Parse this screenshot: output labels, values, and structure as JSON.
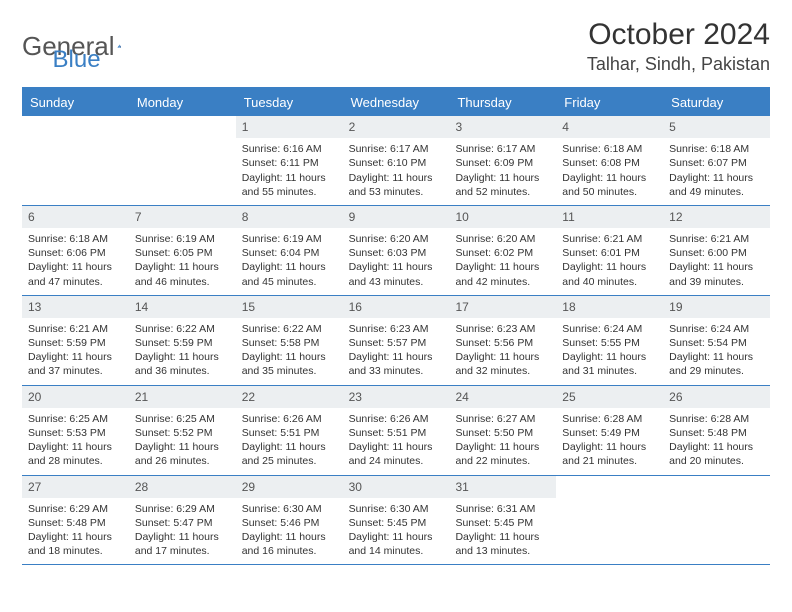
{
  "logo": {
    "part1": "General",
    "part2": "Blue"
  },
  "title": "October 2024",
  "location": "Talhar, Sindh, Pakistan",
  "colors": {
    "brand": "#3a7fc4",
    "header_bg": "#3a7fc4",
    "header_text": "#ffffff",
    "daynum_bg": "#eceff1",
    "text": "#333333",
    "page_bg": "#ffffff"
  },
  "fonts": {
    "title_size": 30,
    "location_size": 18,
    "dayheader_size": 13,
    "daynum_size": 12,
    "cell_size": 10.5
  },
  "day_names": [
    "Sunday",
    "Monday",
    "Tuesday",
    "Wednesday",
    "Thursday",
    "Friday",
    "Saturday"
  ],
  "weeks": [
    [
      null,
      null,
      {
        "n": "1",
        "sr": "6:16 AM",
        "ss": "6:11 PM",
        "dl": "11 hours and 55 minutes."
      },
      {
        "n": "2",
        "sr": "6:17 AM",
        "ss": "6:10 PM",
        "dl": "11 hours and 53 minutes."
      },
      {
        "n": "3",
        "sr": "6:17 AM",
        "ss": "6:09 PM",
        "dl": "11 hours and 52 minutes."
      },
      {
        "n": "4",
        "sr": "6:18 AM",
        "ss": "6:08 PM",
        "dl": "11 hours and 50 minutes."
      },
      {
        "n": "5",
        "sr": "6:18 AM",
        "ss": "6:07 PM",
        "dl": "11 hours and 49 minutes."
      }
    ],
    [
      {
        "n": "6",
        "sr": "6:18 AM",
        "ss": "6:06 PM",
        "dl": "11 hours and 47 minutes."
      },
      {
        "n": "7",
        "sr": "6:19 AM",
        "ss": "6:05 PM",
        "dl": "11 hours and 46 minutes."
      },
      {
        "n": "8",
        "sr": "6:19 AM",
        "ss": "6:04 PM",
        "dl": "11 hours and 45 minutes."
      },
      {
        "n": "9",
        "sr": "6:20 AM",
        "ss": "6:03 PM",
        "dl": "11 hours and 43 minutes."
      },
      {
        "n": "10",
        "sr": "6:20 AM",
        "ss": "6:02 PM",
        "dl": "11 hours and 42 minutes."
      },
      {
        "n": "11",
        "sr": "6:21 AM",
        "ss": "6:01 PM",
        "dl": "11 hours and 40 minutes."
      },
      {
        "n": "12",
        "sr": "6:21 AM",
        "ss": "6:00 PM",
        "dl": "11 hours and 39 minutes."
      }
    ],
    [
      {
        "n": "13",
        "sr": "6:21 AM",
        "ss": "5:59 PM",
        "dl": "11 hours and 37 minutes."
      },
      {
        "n": "14",
        "sr": "6:22 AM",
        "ss": "5:59 PM",
        "dl": "11 hours and 36 minutes."
      },
      {
        "n": "15",
        "sr": "6:22 AM",
        "ss": "5:58 PM",
        "dl": "11 hours and 35 minutes."
      },
      {
        "n": "16",
        "sr": "6:23 AM",
        "ss": "5:57 PM",
        "dl": "11 hours and 33 minutes."
      },
      {
        "n": "17",
        "sr": "6:23 AM",
        "ss": "5:56 PM",
        "dl": "11 hours and 32 minutes."
      },
      {
        "n": "18",
        "sr": "6:24 AM",
        "ss": "5:55 PM",
        "dl": "11 hours and 31 minutes."
      },
      {
        "n": "19",
        "sr": "6:24 AM",
        "ss": "5:54 PM",
        "dl": "11 hours and 29 minutes."
      }
    ],
    [
      {
        "n": "20",
        "sr": "6:25 AM",
        "ss": "5:53 PM",
        "dl": "11 hours and 28 minutes."
      },
      {
        "n": "21",
        "sr": "6:25 AM",
        "ss": "5:52 PM",
        "dl": "11 hours and 26 minutes."
      },
      {
        "n": "22",
        "sr": "6:26 AM",
        "ss": "5:51 PM",
        "dl": "11 hours and 25 minutes."
      },
      {
        "n": "23",
        "sr": "6:26 AM",
        "ss": "5:51 PM",
        "dl": "11 hours and 24 minutes."
      },
      {
        "n": "24",
        "sr": "6:27 AM",
        "ss": "5:50 PM",
        "dl": "11 hours and 22 minutes."
      },
      {
        "n": "25",
        "sr": "6:28 AM",
        "ss": "5:49 PM",
        "dl": "11 hours and 21 minutes."
      },
      {
        "n": "26",
        "sr": "6:28 AM",
        "ss": "5:48 PM",
        "dl": "11 hours and 20 minutes."
      }
    ],
    [
      {
        "n": "27",
        "sr": "6:29 AM",
        "ss": "5:48 PM",
        "dl": "11 hours and 18 minutes."
      },
      {
        "n": "28",
        "sr": "6:29 AM",
        "ss": "5:47 PM",
        "dl": "11 hours and 17 minutes."
      },
      {
        "n": "29",
        "sr": "6:30 AM",
        "ss": "5:46 PM",
        "dl": "11 hours and 16 minutes."
      },
      {
        "n": "30",
        "sr": "6:30 AM",
        "ss": "5:45 PM",
        "dl": "11 hours and 14 minutes."
      },
      {
        "n": "31",
        "sr": "6:31 AM",
        "ss": "5:45 PM",
        "dl": "11 hours and 13 minutes."
      },
      null,
      null
    ]
  ],
  "labels": {
    "sunrise": "Sunrise:",
    "sunset": "Sunset:",
    "daylight": "Daylight:"
  }
}
